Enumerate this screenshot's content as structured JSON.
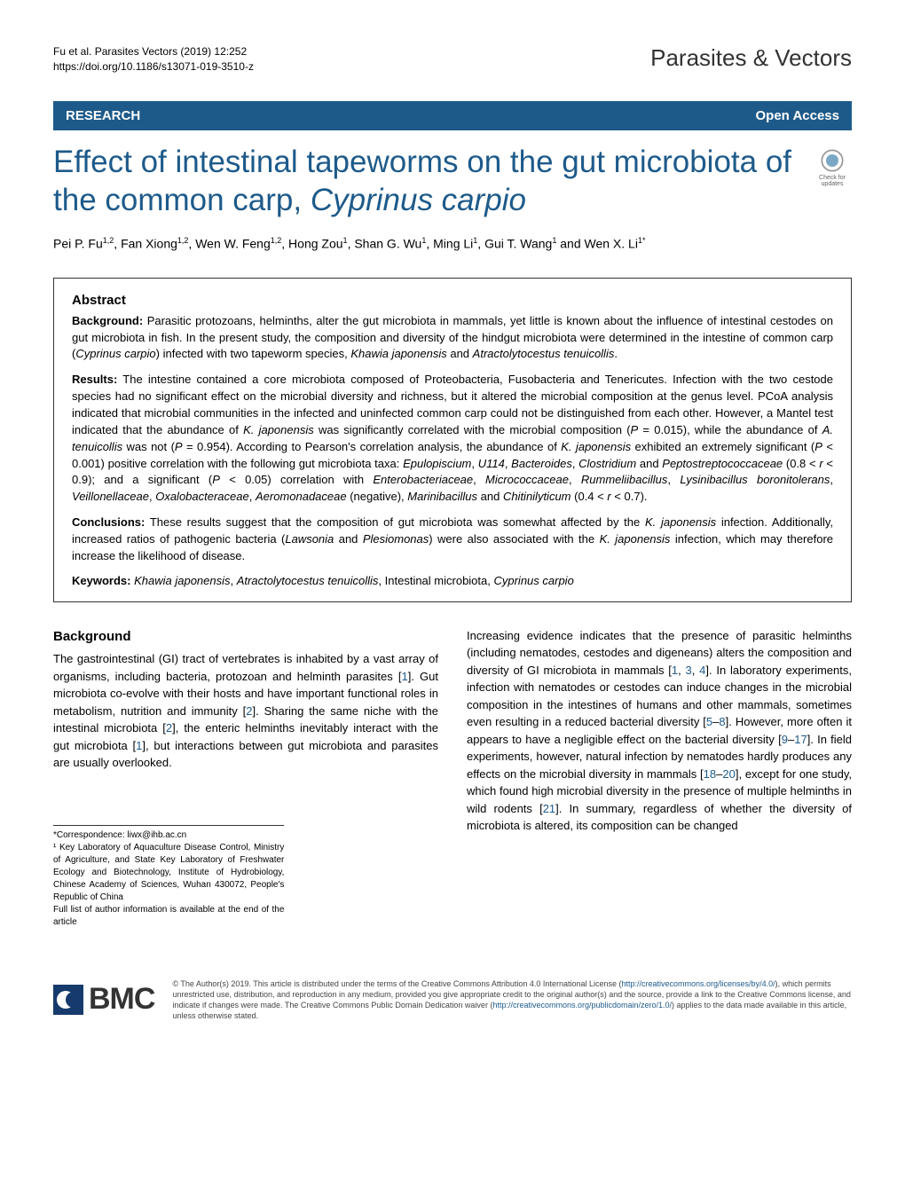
{
  "header": {
    "citation_line1": "Fu et al. Parasites Vectors     (2019) 12:252",
    "citation_line2": "https://doi.org/10.1186/s13071-019-3510-z",
    "journal": "Parasites & Vectors"
  },
  "banner": {
    "research": "RESEARCH",
    "open_access": "Open Access"
  },
  "title": "Effect of intestinal tapeworms on the gut microbiota of the common carp, Cyprinus carpio",
  "check_updates_label": "Check for updates",
  "authors_html": "Pei P. Fu<sup>1,2</sup>, Fan Xiong<sup>1,2</sup>, Wen W. Feng<sup>1,2</sup>, Hong Zou<sup>1</sup>, Shan G. Wu<sup>1</sup>, Ming Li<sup>1</sup>, Gui T. Wang<sup>1</sup> and Wen X. Li<sup>1*</sup>",
  "abstract": {
    "heading": "Abstract",
    "background_label": "Background:",
    "background_text": "Parasitic protozoans, helminths, alter the gut microbiota in mammals, yet little is known about the influence of intestinal cestodes on gut microbiota in fish. In the present study, the composition and diversity of the hindgut microbiota were determined in the intestine of common carp (Cyprinus carpio) infected with two tapeworm species, Khawia japonensis and Atractolytocestus tenuicollis.",
    "results_label": "Results:",
    "results_text": "The intestine contained a core microbiota composed of Proteobacteria, Fusobacteria and Tenericutes. Infection with the two cestode species had no significant effect on the microbial diversity and richness, but it altered the microbial composition at the genus level. PCoA analysis indicated that microbial communities in the infected and uninfected common carp could not be distinguished from each other. However, a Mantel test indicated that the abundance of K. japonensis was significantly correlated with the microbial composition (P = 0.015), while the abundance of A. tenuicollis was not (P = 0.954). According to Pearson's correlation analysis, the abundance of K. japonensis exhibited an extremely significant (P < 0.001) positive correlation with the following gut microbiota taxa: Epulopiscium, U114, Bacteroides, Clostridium and Peptostreptococcaceae (0.8 < r < 0.9); and a significant (P < 0.05) correlation with Enterobacteriaceae, Micrococcaceae, Rummeliibacillus, Lysinibacillus boronitolerans, Veillonellaceae, Oxalobacteraceae, Aeromonadaceae (negative), Marinibacillus and Chitinilyticum (0.4 < r < 0.7).",
    "conclusions_label": "Conclusions:",
    "conclusions_text": "These results suggest that the composition of gut microbiota was somewhat affected by the K. japonensis infection. Additionally, increased ratios of pathogenic bacteria (Lawsonia and Plesiomonas) were also associated with the K. japonensis infection, which may therefore increase the likelihood of disease.",
    "keywords_label": "Keywords:",
    "keywords_text": "Khawia japonensis, Atractolytocestus tenuicollis, Intestinal microbiota, Cyprinus carpio"
  },
  "background": {
    "heading": "Background",
    "col1": "The gastrointestinal (GI) tract of vertebrates is inhabited by a vast array of organisms, including bacteria, protozoan and helminth parasites [1]. Gut microbiota co-evolve with their hosts and have important functional roles in metabolism, nutrition and immunity [2]. Sharing the same niche with the intestinal microbiota [2], the enteric helminths inevitably interact with the gut microbiota [1], but interactions between gut microbiota and parasites are usually overlooked.",
    "col2": "Increasing evidence indicates that the presence of parasitic helminths (including nematodes, cestodes and digeneans) alters the composition and diversity of GI microbiota in mammals [1, 3, 4]. In laboratory experiments, infection with nematodes or cestodes can induce changes in the microbial composition in the intestines of humans and other mammals, sometimes even resulting in a reduced bacterial diversity [5–8]. However, more often it appears to have a negligible effect on the bacterial diversity [9–17]. In field experiments, however, natural infection by nematodes hardly produces any effects on the microbial diversity in mammals [18–20], except for one study, which found high microbial diversity in the presence of multiple helminths in wild rodents [21]. In summary, regardless of whether the diversity of microbiota is altered, its composition can be changed"
  },
  "correspondence": {
    "line1": "*Correspondence:  liwx@ihb.ac.cn",
    "line2": "¹ Key Laboratory of Aquaculture Disease Control, Ministry of Agriculture, and State Key Laboratory of Freshwater Ecology and Biotechnology, Institute of Hydrobiology, Chinese Academy of Sciences, Wuhan 430072, People's Republic of China",
    "line3": "Full list of author information is available at the end of the article"
  },
  "footer": {
    "bmc": "BMC",
    "license": "© The Author(s) 2019. This article is distributed under the terms of the Creative Commons Attribution 4.0 International License (http://creativecommons.org/licenses/by/4.0/), which permits unrestricted use, distribution, and reproduction in any medium, provided you give appropriate credit to the original author(s) and the source, provide a link to the Creative Commons license, and indicate if changes were made. The Creative Commons Public Domain Dedication waiver (http://creativecommons.org/publicdomain/zero/1.0/) applies to the data made available in this article, unless otherwise stated.",
    "license_link1": "http://creativecommons.org/licenses/by/4.0/",
    "license_link2": "http://creativecommons.org/publicdomain/zero/1.0/"
  },
  "colors": {
    "journal_blue": "#1d5a8a",
    "bmc_navy": "#163a6b"
  }
}
